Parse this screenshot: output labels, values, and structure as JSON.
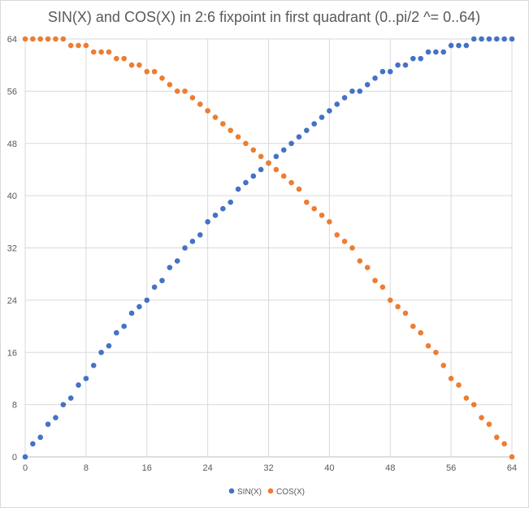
{
  "chart_data": {
    "type": "scatter",
    "title": "SIN(X) and COS(X) in 2:6 fixpoint in first quadrant (0..pi/2 ^= 0..64)",
    "xlabel": "",
    "ylabel": "",
    "xlim": [
      0,
      64
    ],
    "ylim": [
      0,
      64
    ],
    "xticks": [
      "0",
      "8",
      "16",
      "24",
      "32",
      "40",
      "48",
      "56",
      "64"
    ],
    "yticks": [
      "0",
      "8",
      "16",
      "24",
      "32",
      "40",
      "48",
      "56",
      "64"
    ],
    "grid": true,
    "legend_position": "bottom",
    "x": [
      0,
      1,
      2,
      3,
      4,
      5,
      6,
      7,
      8,
      9,
      10,
      11,
      12,
      13,
      14,
      15,
      16,
      17,
      18,
      19,
      20,
      21,
      22,
      23,
      24,
      25,
      26,
      27,
      28,
      29,
      30,
      31,
      32,
      33,
      34,
      35,
      36,
      37,
      38,
      39,
      40,
      41,
      42,
      43,
      44,
      45,
      46,
      47,
      48,
      49,
      50,
      51,
      52,
      53,
      54,
      55,
      56,
      57,
      58,
      59,
      60,
      61,
      62,
      63,
      64
    ],
    "series": [
      {
        "name": "SIN(X)",
        "color": "#4472C4",
        "values": [
          0,
          2,
          3,
          5,
          6,
          8,
          9,
          11,
          12,
          14,
          16,
          17,
          19,
          20,
          22,
          23,
          24,
          26,
          27,
          29,
          30,
          32,
          33,
          34,
          36,
          37,
          38,
          39,
          41,
          42,
          43,
          44,
          45,
          46,
          47,
          48,
          49,
          50,
          51,
          52,
          53,
          54,
          55,
          56,
          56,
          57,
          58,
          59,
          59,
          60,
          60,
          61,
          61,
          62,
          62,
          62,
          63,
          63,
          63,
          64,
          64,
          64,
          64,
          64,
          64
        ]
      },
      {
        "name": "COS(X)",
        "color": "#ED7D31",
        "values": [
          64,
          64,
          64,
          64,
          64,
          64,
          63,
          63,
          63,
          62,
          62,
          62,
          61,
          61,
          60,
          60,
          59,
          59,
          58,
          57,
          56,
          56,
          55,
          54,
          53,
          52,
          51,
          50,
          49,
          48,
          47,
          46,
          45,
          44,
          43,
          42,
          41,
          39,
          38,
          37,
          36,
          34,
          33,
          32,
          30,
          29,
          27,
          26,
          24,
          23,
          22,
          20,
          19,
          17,
          16,
          14,
          12,
          11,
          9,
          8,
          6,
          5,
          3,
          2,
          0
        ]
      }
    ]
  }
}
